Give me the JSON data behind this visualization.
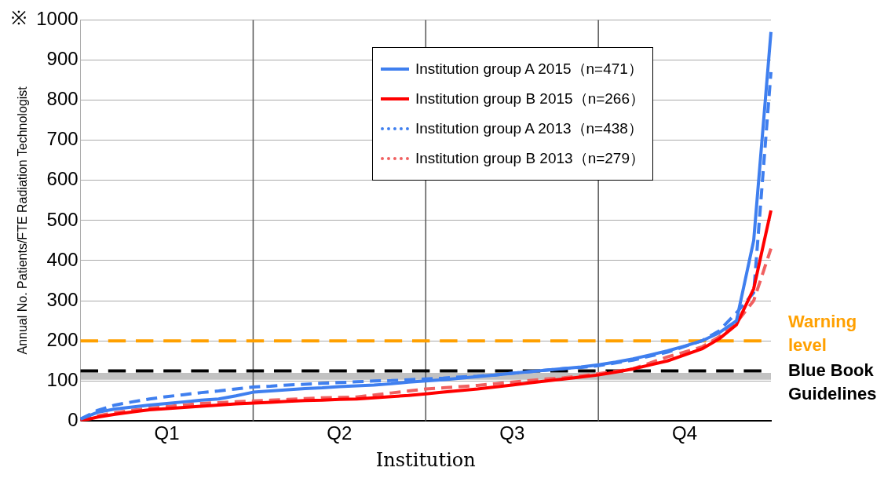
{
  "chart_data": {
    "type": "line",
    "xlabel": "Institution",
    "ylabel": "Annual No. Patients/FTE Radiation Technologist",
    "annotations": [
      "※"
    ],
    "categories": [
      null,
      null,
      null,
      null,
      null,
      "Q1",
      null,
      null,
      null,
      null,
      null,
      null,
      null,
      null,
      null,
      "Q2",
      null,
      null,
      null,
      null,
      null,
      null,
      null,
      null,
      null,
      "Q3",
      null,
      null,
      null,
      null,
      null,
      null,
      null,
      null,
      null,
      "Q4",
      null,
      null,
      null,
      null,
      null
    ],
    "ylim": [
      0,
      1000
    ],
    "yticks": [
      0,
      100,
      200,
      300,
      400,
      500,
      600,
      700,
      800,
      900,
      1000
    ],
    "grid": true,
    "legend": "top right",
    "marker": "none",
    "series": [
      {
        "name": "Institution group A 2015（n=471）",
        "color": "#3f7fef",
        "line_style": "solid",
        "values": [
          5,
          22,
          30,
          35,
          40,
          44,
          48,
          52,
          55,
          63,
          72,
          75,
          78,
          81,
          83,
          86,
          88,
          90,
          93,
          97,
          100,
          103,
          107,
          111,
          115,
          119,
          123,
          127,
          131,
          135,
          140,
          147,
          155,
          165,
          175,
          187,
          200,
          220,
          250,
          450,
          970
        ]
      },
      {
        "name": "Institution group B 2015（n=266）",
        "color": "#ff0000",
        "line_style": "solid",
        "values": [
          0,
          10,
          17,
          23,
          28,
          31,
          34,
          37,
          40,
          43,
          45,
          47,
          49,
          51,
          52,
          54,
          55,
          58,
          61,
          64,
          68,
          72,
          76,
          80,
          85,
          90,
          95,
          100,
          105,
          110,
          115,
          122,
          130,
          140,
          150,
          165,
          180,
          205,
          240,
          330,
          525
        ]
      },
      {
        "name": "Institution group A 2013（n=438）",
        "color": "#3f7fef",
        "line_style": "dashed",
        "values": [
          5,
          27,
          40,
          48,
          55,
          61,
          66,
          71,
          75,
          80,
          85,
          87,
          90,
          92,
          94,
          96,
          98,
          100,
          101,
          103,
          105,
          107,
          110,
          112,
          115,
          119,
          123,
          127,
          131,
          134,
          138,
          145,
          152,
          162,
          172,
          186,
          200,
          225,
          270,
          320,
          870
        ]
      },
      {
        "name": "Institution group B 2013（n=279）",
        "color": "#f06060",
        "line_style": "dashed",
        "values": [
          2,
          13,
          21,
          27,
          32,
          36,
          40,
          44,
          46,
          48,
          50,
          52,
          54,
          56,
          58,
          59,
          60,
          65,
          70,
          75,
          80,
          83,
          86,
          89,
          93,
          97,
          101,
          105,
          108,
          113,
          118,
          124,
          130,
          145,
          160,
          172,
          185,
          210,
          245,
          300,
          430
        ]
      }
    ],
    "ref_lines": [
      {
        "axis": "y",
        "value": 200,
        "label": "Warning level",
        "color": "#ffa000",
        "line_style": "dashed"
      },
      {
        "axis": "y",
        "value": 125,
        "label": "Blue Book Guidelines",
        "color": "#000000",
        "line_style": "dashed"
      }
    ],
    "bands": [
      {
        "axis": "y",
        "from": 103,
        "to": 120,
        "color": "#9a9a9a"
      }
    ]
  }
}
